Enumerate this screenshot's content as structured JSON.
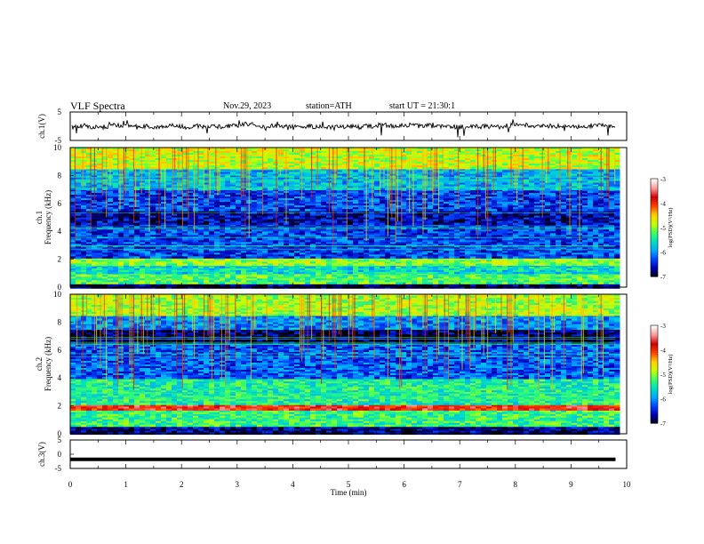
{
  "header": {
    "title": "VLF Spectra",
    "date": "Nov.29, 2023",
    "station": "station=ATH",
    "start_ut": "start UT = 21:30:1"
  },
  "colors": {
    "spectrogram_scale": [
      "#000000",
      "#0000b0",
      "#0044ff",
      "#00aaff",
      "#00e0c0",
      "#40ff60",
      "#c8ff00",
      "#ffd000",
      "#ff4000",
      "#cc0000",
      "#ff9999",
      "#ffffff"
    ],
    "trace": "#000000"
  },
  "chart_data": [
    {
      "type": "line",
      "name": "ch1-waveform",
      "ylabel": "ch.1(V)",
      "ylim": [
        -5,
        5
      ],
      "yticks": [
        "5",
        "-5"
      ],
      "x_range": [
        0,
        9.8
      ],
      "y_level": 0
    },
    {
      "type": "heatmap",
      "name": "ch1-spectrogram",
      "ylabel": "ch.1\nFrequency (kHz)",
      "ylim": [
        0,
        10
      ],
      "yticks": [
        "0",
        "2",
        "4",
        "6",
        "8",
        "10"
      ],
      "x_range": [
        0,
        9.8
      ],
      "colorbar": {
        "label": "log(PSD)(V²/Hz)",
        "ticks": [
          "-3",
          "-4",
          "-5",
          "-6",
          "-7"
        ],
        "range": [
          -7,
          -3
        ]
      },
      "bands": [
        {
          "f": [
            0,
            0.3
          ],
          "psd": -6.8
        },
        {
          "f": [
            0.3,
            1.0
          ],
          "psd": -5.2
        },
        {
          "f": [
            1.0,
            1.6
          ],
          "psd": -5.6
        },
        {
          "f": [
            1.6,
            2.2
          ],
          "psd": -5.0
        },
        {
          "f": [
            2.2,
            4.5
          ],
          "psd": -6.3
        },
        {
          "f": [
            4.5,
            5.5
          ],
          "psd": -6.6
        },
        {
          "f": [
            5.5,
            7.0
          ],
          "psd": -6.3
        },
        {
          "f": [
            7.0,
            8.5
          ],
          "psd": -5.8
        },
        {
          "f": [
            8.5,
            10.0
          ],
          "psd": -4.8
        }
      ]
    },
    {
      "type": "heatmap",
      "name": "ch2-spectrogram",
      "ylabel": "ch.2\nFrequency (kHz)",
      "ylim": [
        0,
        10
      ],
      "yticks": [
        "0",
        "2",
        "4",
        "6",
        "8",
        "10"
      ],
      "x_range": [
        0,
        9.8
      ],
      "colorbar": {
        "label": "log(PSD)(V²/Hz)",
        "ticks": [
          "-3",
          "-4",
          "-5",
          "-6",
          "-7"
        ],
        "range": [
          -7,
          -3
        ]
      },
      "bands": [
        {
          "f": [
            0,
            0.6
          ],
          "psd": -6.7
        },
        {
          "f": [
            0.6,
            1.8
          ],
          "psd": -5.3
        },
        {
          "f": [
            1.8,
            2.2
          ],
          "psd": -3.8
        },
        {
          "f": [
            2.2,
            4.0
          ],
          "psd": -5.4
        },
        {
          "f": [
            4.0,
            6.5
          ],
          "psd": -6.2
        },
        {
          "f": [
            6.5,
            7.5
          ],
          "psd": -6.8
        },
        {
          "f": [
            7.5,
            8.5
          ],
          "psd": -6.0
        },
        {
          "f": [
            8.5,
            10.0
          ],
          "psd": -4.9
        }
      ]
    },
    {
      "type": "line",
      "name": "ch3-waveform",
      "ylabel": "ch.3(V)",
      "ylim": [
        -5,
        5
      ],
      "yticks": [
        "5",
        "0",
        "-5"
      ],
      "x_range": [
        0,
        9.8
      ],
      "y_level": -1.8
    }
  ],
  "x_axis": {
    "label": "Time (min)",
    "range": [
      0,
      10
    ],
    "ticks": [
      "0",
      "1",
      "2",
      "3",
      "4",
      "5",
      "6",
      "7",
      "8",
      "9",
      "10"
    ]
  }
}
